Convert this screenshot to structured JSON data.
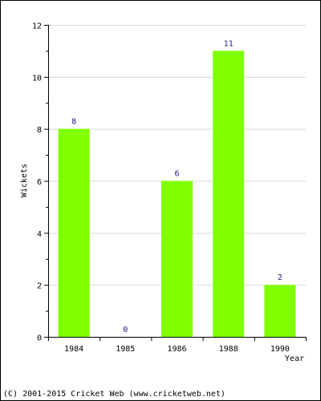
{
  "chart_data": {
    "type": "bar",
    "categories": [
      "1984",
      "1985",
      "1986",
      "1988",
      "1990"
    ],
    "values": [
      8,
      0,
      6,
      11,
      2
    ],
    "data_labels": [
      "8",
      "0",
      "6",
      "11",
      "2"
    ],
    "title": "",
    "xlabel": "Year",
    "ylabel": "Wickets",
    "ylim": [
      0,
      12
    ],
    "yticks": [
      0,
      2,
      4,
      6,
      8,
      10,
      12
    ],
    "grid": true,
    "legend": "none",
    "bar_color": "#7fff00",
    "grid_color": "#d9d9d9"
  },
  "footer": {
    "copyright": "(C) 2001-2015 Cricket Web (www.cricketweb.net)"
  }
}
